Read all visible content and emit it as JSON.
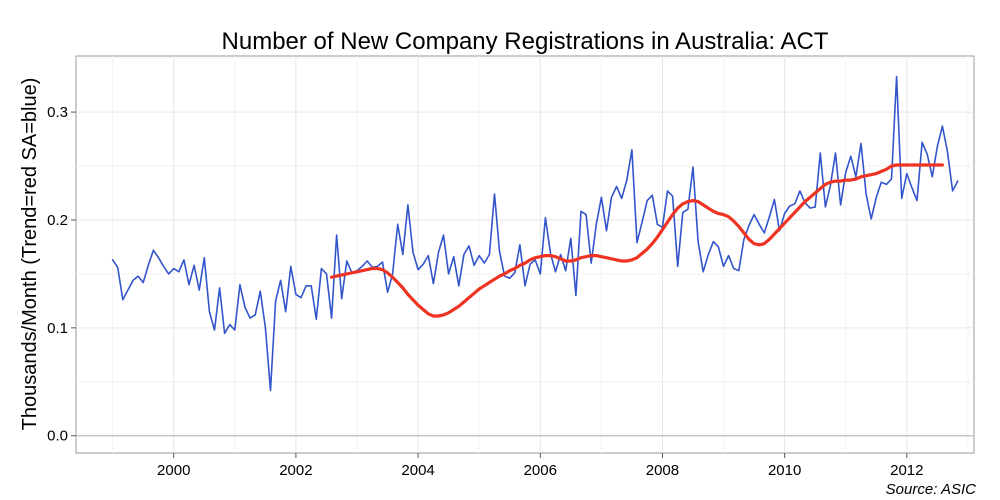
{
  "chart_data": {
    "type": "line",
    "title": "Number of New Company Registrations in Australia: ACT",
    "ylabel": "Thousands/Month (Trend=red SA=blue)",
    "xlabel": "",
    "source": "Source: ASIC",
    "xlim": [
      1998.4,
      2013.1
    ],
    "ylim": [
      -0.016,
      0.352
    ],
    "x_ticks": [
      2000,
      2002,
      2004,
      2006,
      2008,
      2010,
      2012
    ],
    "x_tick_labels": [
      "2000",
      "2002",
      "2004",
      "2006",
      "2008",
      "2010",
      "2012"
    ],
    "y_ticks": [
      0.0,
      0.1,
      0.2,
      0.3
    ],
    "y_tick_labels": [
      "0.0",
      "0.1",
      "0.2",
      "0.3"
    ],
    "grid": true,
    "colors": {
      "trend": "#ee3322",
      "sa": "#3355cc"
    },
    "x_start": 1999.0,
    "x_step_months": 1,
    "series": [
      {
        "key": "sa",
        "values": [
          0.163,
          0.156,
          0.126,
          0.135,
          0.144,
          0.148,
          0.142,
          0.158,
          0.172,
          0.165,
          0.157,
          0.15,
          0.155,
          0.152,
          0.163,
          0.14,
          0.158,
          0.135,
          0.165,
          0.115,
          0.098,
          0.137,
          0.095,
          0.103,
          0.098,
          0.14,
          0.119,
          0.109,
          0.112,
          0.134,
          0.1,
          0.042,
          0.125,
          0.144,
          0.115,
          0.157,
          0.131,
          0.128,
          0.139,
          0.139,
          0.108,
          0.155,
          0.15,
          0.109,
          0.186,
          0.127,
          0.162,
          0.151,
          0.153,
          0.157,
          0.162,
          0.156,
          0.157,
          0.161,
          0.133,
          0.15,
          0.196,
          0.168,
          0.214,
          0.17,
          0.154,
          0.159,
          0.167,
          0.141,
          0.17,
          0.186,
          0.15,
          0.166,
          0.139,
          0.168,
          0.176,
          0.158,
          0.167,
          0.16,
          0.168,
          0.224,
          0.171,
          0.148,
          0.146,
          0.151,
          0.177,
          0.139,
          0.159,
          0.163,
          0.15,
          0.202,
          0.169,
          0.152,
          0.168,
          0.153,
          0.183,
          0.13,
          0.208,
          0.205,
          0.16,
          0.196,
          0.221,
          0.19,
          0.221,
          0.231,
          0.22,
          0.237,
          0.265,
          0.179,
          0.198,
          0.218,
          0.223,
          0.196,
          0.193,
          0.227,
          0.222,
          0.157,
          0.207,
          0.21,
          0.249,
          0.18,
          0.152,
          0.168,
          0.18,
          0.175,
          0.157,
          0.167,
          0.155,
          0.153,
          0.182,
          0.195,
          0.205,
          0.196,
          0.188,
          0.203,
          0.219,
          0.19,
          0.206,
          0.213,
          0.215,
          0.227,
          0.216,
          0.211,
          0.212,
          0.262,
          0.212,
          0.232,
          0.262,
          0.214,
          0.244,
          0.259,
          0.24,
          0.271,
          0.224,
          0.201,
          0.221,
          0.235,
          0.233,
          0.238,
          0.333,
          0.22,
          0.243,
          0.23,
          0.218,
          0.272,
          0.261,
          0.24,
          0.268,
          0.287,
          0.263,
          0.227,
          0.236
        ]
      },
      {
        "key": "trend",
        "values": [
          0.147,
          0.148,
          0.149,
          0.15,
          0.151,
          0.152,
          0.153,
          0.154,
          0.155,
          0.155,
          0.154,
          0.151,
          0.147,
          0.142,
          0.137,
          0.131,
          0.126,
          0.121,
          0.117,
          0.113,
          0.111,
          0.111,
          0.112,
          0.114,
          0.117,
          0.12,
          0.124,
          0.128,
          0.132,
          0.136,
          0.139,
          0.142,
          0.145,
          0.148,
          0.15,
          0.153,
          0.155,
          0.158,
          0.16,
          0.163,
          0.165,
          0.166,
          0.167,
          0.167,
          0.166,
          0.164,
          0.162,
          0.162,
          0.163,
          0.165,
          0.166,
          0.167,
          0.167,
          0.166,
          0.165,
          0.164,
          0.163,
          0.162,
          0.162,
          0.163,
          0.165,
          0.169,
          0.173,
          0.178,
          0.184,
          0.191,
          0.198,
          0.205,
          0.211,
          0.215,
          0.217,
          0.218,
          0.217,
          0.214,
          0.211,
          0.208,
          0.206,
          0.205,
          0.203,
          0.199,
          0.194,
          0.188,
          0.182,
          0.178,
          0.177,
          0.178,
          0.182,
          0.187,
          0.192,
          0.197,
          0.202,
          0.207,
          0.212,
          0.217,
          0.221,
          0.225,
          0.229,
          0.233,
          0.235,
          0.236,
          0.236,
          0.237,
          0.237,
          0.238,
          0.24,
          0.241,
          0.242,
          0.243,
          0.245,
          0.247,
          0.25,
          0.251,
          0.251,
          0.251,
          0.251,
          0.251,
          0.251,
          0.251,
          0.251,
          0.251,
          0.251
        ],
        "x_start": 2002.583
      }
    ]
  }
}
